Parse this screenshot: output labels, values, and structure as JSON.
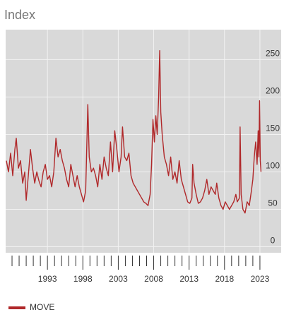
{
  "chart_data": {
    "type": "line",
    "title": "Index",
    "x": [
      1987.2,
      1987.5,
      1987.8,
      1988.1,
      1988.4,
      1988.6,
      1988.9,
      1989.2,
      1989.5,
      1989.8,
      1990.0,
      1990.3,
      1990.6,
      1990.9,
      1991.2,
      1991.5,
      1991.8,
      1992.1,
      1992.4,
      1992.7,
      1993.0,
      1993.3,
      1993.6,
      1993.9,
      1994.2,
      1994.5,
      1994.8,
      1995.1,
      1995.4,
      1995.7,
      1996.0,
      1996.3,
      1996.6,
      1996.9,
      1997.2,
      1997.5,
      1997.8,
      1998.1,
      1998.4,
      1998.7,
      1998.9,
      1999.2,
      1999.5,
      1999.8,
      2000.1,
      2000.4,
      2000.7,
      2001.0,
      2001.3,
      2001.6,
      2001.9,
      2002.2,
      2002.5,
      2002.8,
      2003.1,
      2003.4,
      2003.6,
      2003.9,
      2004.2,
      2004.5,
      2004.8,
      2005.1,
      2005.4,
      2005.7,
      2006.0,
      2006.3,
      2006.6,
      2006.9,
      2007.2,
      2007.5,
      2007.7,
      2007.9,
      2008.1,
      2008.3,
      2008.5,
      2008.7,
      2008.85,
      2009.0,
      2009.2,
      2009.5,
      2009.8,
      2010.1,
      2010.4,
      2010.7,
      2011.0,
      2011.3,
      2011.6,
      2011.9,
      2012.2,
      2012.5,
      2012.8,
      2013.1,
      2013.4,
      2013.5,
      2013.7,
      2014.0,
      2014.3,
      2014.6,
      2014.9,
      2015.2,
      2015.5,
      2015.8,
      2016.1,
      2016.4,
      2016.7,
      2016.9,
      2017.2,
      2017.5,
      2017.8,
      2018.1,
      2018.4,
      2018.7,
      2019.0,
      2019.3,
      2019.6,
      2019.8,
      2020.1,
      2020.2,
      2020.35,
      2020.6,
      2020.9,
      2021.2,
      2021.5,
      2021.8,
      2022.0,
      2022.2,
      2022.4,
      2022.6,
      2022.75,
      2022.85,
      2022.95,
      2023.05,
      2023.15
    ],
    "series": [
      {
        "name": "MOVE",
        "color": "#b0282a",
        "values": [
          115,
          100,
          125,
          95,
          130,
          145,
          105,
          115,
          85,
          100,
          62,
          95,
          130,
          105,
          85,
          100,
          88,
          80,
          100,
          110,
          90,
          95,
          80,
          100,
          145,
          120,
          130,
          115,
          105,
          90,
          80,
          110,
          95,
          80,
          95,
          80,
          70,
          60,
          75,
          190,
          120,
          100,
          105,
          95,
          80,
          110,
          90,
          120,
          105,
          95,
          140,
          100,
          155,
          130,
          100,
          120,
          160,
          120,
          115,
          125,
          95,
          85,
          80,
          75,
          70,
          65,
          60,
          58,
          55,
          70,
          110,
          170,
          140,
          175,
          150,
          200,
          262,
          180,
          150,
          120,
          110,
          95,
          120,
          90,
          100,
          85,
          115,
          90,
          80,
          70,
          60,
          58,
          65,
          110,
          85,
          70,
          58,
          60,
          65,
          75,
          90,
          70,
          80,
          75,
          70,
          85,
          65,
          55,
          50,
          60,
          55,
          50,
          55,
          60,
          70,
          60,
          65,
          160,
          70,
          50,
          45,
          60,
          55,
          75,
          90,
          120,
          140,
          110,
          155,
          120,
          195,
          115,
          100
        ]
      }
    ],
    "xlim": [
      1987.1,
      2026
    ],
    "ylim": [
      -8,
      290
    ],
    "xticks": [
      1993,
      1998,
      2003,
      2008,
      2013,
      2018,
      2023
    ],
    "xminor_ticks": [
      1988,
      1989,
      1990,
      1991,
      1992,
      1994,
      1995,
      1996,
      1997,
      1999,
      2000,
      2001,
      2002,
      2004,
      2005,
      2006,
      2007,
      2009,
      2010,
      2011,
      2012,
      2014,
      2015,
      2016,
      2017,
      2019,
      2020,
      2021,
      2022
    ],
    "yticks": [
      0,
      50,
      100,
      150,
      200,
      250
    ],
    "grid": true
  }
}
